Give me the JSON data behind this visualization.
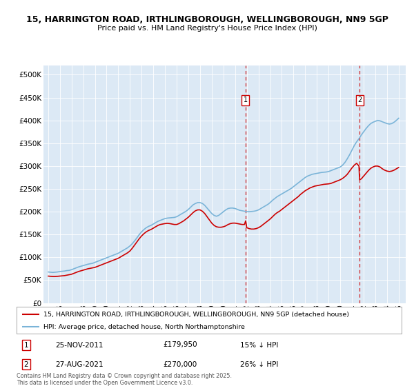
{
  "title_line1": "15, HARRINGTON ROAD, IRTHLINGBOROUGH, WELLINGBOROUGH, NN9 5GP",
  "title_line2": "Price paid vs. HM Land Registry's House Price Index (HPI)",
  "background_color": "#dce9f5",
  "fig_bg_color": "#ffffff",
  "hpi_color": "#7ab4d8",
  "price_color": "#cc0000",
  "annotation1": {
    "label": "1",
    "date": "25-NOV-2011",
    "price": "£179,950",
    "note": "15% ↓ HPI"
  },
  "annotation2": {
    "label": "2",
    "date": "27-AUG-2021",
    "price": "£270,000",
    "note": "26% ↓ HPI"
  },
  "legend_line1": "15, HARRINGTON ROAD, IRTHLINGBOROUGH, WELLINGBOROUGH, NN9 5GP (detached house)",
  "legend_line2": "HPI: Average price, detached house, North Northamptonshire",
  "footnote": "Contains HM Land Registry data © Crown copyright and database right 2025.\nThis data is licensed under the Open Government Licence v3.0.",
  "ylim": [
    0,
    520000
  ],
  "yticks": [
    0,
    50000,
    100000,
    150000,
    200000,
    250000,
    300000,
    350000,
    400000,
    450000,
    500000
  ],
  "ytick_labels": [
    "£0",
    "£50K",
    "£100K",
    "£150K",
    "£200K",
    "£250K",
    "£300K",
    "£350K",
    "£400K",
    "£450K",
    "£500K"
  ],
  "marker1_x": 2011.9,
  "marker2_x": 2021.65,
  "hpi_data": [
    [
      1995.0,
      68000
    ],
    [
      1995.2,
      67500
    ],
    [
      1995.4,
      67000
    ],
    [
      1995.6,
      67500
    ],
    [
      1995.8,
      68000
    ],
    [
      1996.0,
      69000
    ],
    [
      1996.2,
      69500
    ],
    [
      1996.4,
      70000
    ],
    [
      1996.6,
      71000
    ],
    [
      1996.8,
      71500
    ],
    [
      1997.0,
      73000
    ],
    [
      1997.2,
      75000
    ],
    [
      1997.4,
      77000
    ],
    [
      1997.6,
      79000
    ],
    [
      1997.8,
      80500
    ],
    [
      1998.0,
      82000
    ],
    [
      1998.2,
      83500
    ],
    [
      1998.4,
      85000
    ],
    [
      1998.6,
      86000
    ],
    [
      1998.8,
      87000
    ],
    [
      1999.0,
      89000
    ],
    [
      1999.2,
      91000
    ],
    [
      1999.4,
      93000
    ],
    [
      1999.6,
      95000
    ],
    [
      1999.8,
      97000
    ],
    [
      2000.0,
      99000
    ],
    [
      2000.2,
      101000
    ],
    [
      2000.4,
      103000
    ],
    [
      2000.6,
      105000
    ],
    [
      2000.8,
      107000
    ],
    [
      2001.0,
      109000
    ],
    [
      2001.2,
      112000
    ],
    [
      2001.4,
      115000
    ],
    [
      2001.6,
      118000
    ],
    [
      2001.8,
      121000
    ],
    [
      2002.0,
      125000
    ],
    [
      2002.2,
      130000
    ],
    [
      2002.4,
      136000
    ],
    [
      2002.6,
      143000
    ],
    [
      2002.8,
      150000
    ],
    [
      2003.0,
      156000
    ],
    [
      2003.2,
      161000
    ],
    [
      2003.4,
      165000
    ],
    [
      2003.6,
      168000
    ],
    [
      2003.8,
      170000
    ],
    [
      2004.0,
      173000
    ],
    [
      2004.2,
      176000
    ],
    [
      2004.4,
      179000
    ],
    [
      2004.6,
      181000
    ],
    [
      2004.8,
      183000
    ],
    [
      2005.0,
      185000
    ],
    [
      2005.2,
      186000
    ],
    [
      2005.4,
      186500
    ],
    [
      2005.6,
      187000
    ],
    [
      2005.8,
      187500
    ],
    [
      2006.0,
      189000
    ],
    [
      2006.2,
      192000
    ],
    [
      2006.4,
      195000
    ],
    [
      2006.6,
      198000
    ],
    [
      2006.8,
      201000
    ],
    [
      2007.0,
      205000
    ],
    [
      2007.2,
      210000
    ],
    [
      2007.4,
      215000
    ],
    [
      2007.6,
      218000
    ],
    [
      2007.8,
      220000
    ],
    [
      2008.0,
      220000
    ],
    [
      2008.2,
      218000
    ],
    [
      2008.4,
      214000
    ],
    [
      2008.6,
      208000
    ],
    [
      2008.8,
      202000
    ],
    [
      2009.0,
      196000
    ],
    [
      2009.2,
      192000
    ],
    [
      2009.4,
      190000
    ],
    [
      2009.6,
      192000
    ],
    [
      2009.8,
      196000
    ],
    [
      2010.0,
      200000
    ],
    [
      2010.2,
      204000
    ],
    [
      2010.4,
      207000
    ],
    [
      2010.6,
      208000
    ],
    [
      2010.8,
      208000
    ],
    [
      2011.0,
      207000
    ],
    [
      2011.2,
      205000
    ],
    [
      2011.4,
      203000
    ],
    [
      2011.6,
      202000
    ],
    [
      2011.8,
      201000
    ],
    [
      2012.0,
      200000
    ],
    [
      2012.2,
      200000
    ],
    [
      2012.4,
      200500
    ],
    [
      2012.6,
      201000
    ],
    [
      2012.8,
      202000
    ],
    [
      2013.0,
      204000
    ],
    [
      2013.2,
      207000
    ],
    [
      2013.4,
      210000
    ],
    [
      2013.6,
      213000
    ],
    [
      2013.8,
      216000
    ],
    [
      2014.0,
      220000
    ],
    [
      2014.2,
      225000
    ],
    [
      2014.4,
      229000
    ],
    [
      2014.6,
      233000
    ],
    [
      2014.8,
      236000
    ],
    [
      2015.0,
      239000
    ],
    [
      2015.2,
      242000
    ],
    [
      2015.4,
      245000
    ],
    [
      2015.6,
      248000
    ],
    [
      2015.8,
      251000
    ],
    [
      2016.0,
      255000
    ],
    [
      2016.2,
      259000
    ],
    [
      2016.4,
      263000
    ],
    [
      2016.6,
      267000
    ],
    [
      2016.8,
      271000
    ],
    [
      2017.0,
      275000
    ],
    [
      2017.2,
      278000
    ],
    [
      2017.4,
      280000
    ],
    [
      2017.6,
      282000
    ],
    [
      2017.8,
      283000
    ],
    [
      2018.0,
      284000
    ],
    [
      2018.2,
      285000
    ],
    [
      2018.4,
      286000
    ],
    [
      2018.6,
      286500
    ],
    [
      2018.8,
      287000
    ],
    [
      2019.0,
      288000
    ],
    [
      2019.2,
      290000
    ],
    [
      2019.4,
      292000
    ],
    [
      2019.6,
      294000
    ],
    [
      2019.8,
      296000
    ],
    [
      2020.0,
      298000
    ],
    [
      2020.2,
      302000
    ],
    [
      2020.4,
      308000
    ],
    [
      2020.6,
      316000
    ],
    [
      2020.8,
      325000
    ],
    [
      2021.0,
      335000
    ],
    [
      2021.2,
      345000
    ],
    [
      2021.4,
      353000
    ],
    [
      2021.6,
      360000
    ],
    [
      2021.8,
      368000
    ],
    [
      2022.0,
      375000
    ],
    [
      2022.2,
      382000
    ],
    [
      2022.4,
      388000
    ],
    [
      2022.6,
      393000
    ],
    [
      2022.8,
      396000
    ],
    [
      2023.0,
      398000
    ],
    [
      2023.2,
      400000
    ],
    [
      2023.4,
      399000
    ],
    [
      2023.6,
      397000
    ],
    [
      2023.8,
      395000
    ],
    [
      2024.0,
      393000
    ],
    [
      2024.2,
      392000
    ],
    [
      2024.4,
      393000
    ],
    [
      2024.6,
      396000
    ],
    [
      2024.8,
      400000
    ],
    [
      2025.0,
      405000
    ]
  ],
  "price_data": [
    [
      1995.0,
      59000
    ],
    [
      1995.2,
      58500
    ],
    [
      1995.4,
      58000
    ],
    [
      1995.6,
      58000
    ],
    [
      1995.8,
      58500
    ],
    [
      1996.0,
      59000
    ],
    [
      1996.2,
      59500
    ],
    [
      1996.4,
      60000
    ],
    [
      1996.6,
      61000
    ],
    [
      1996.8,
      62000
    ],
    [
      1997.0,
      63000
    ],
    [
      1997.2,
      65000
    ],
    [
      1997.4,
      67000
    ],
    [
      1997.6,
      69000
    ],
    [
      1997.8,
      70500
    ],
    [
      1998.0,
      72000
    ],
    [
      1998.2,
      73500
    ],
    [
      1998.4,
      75000
    ],
    [
      1998.6,
      76000
    ],
    [
      1998.8,
      77000
    ],
    [
      1999.0,
      78000
    ],
    [
      1999.2,
      80000
    ],
    [
      1999.4,
      82000
    ],
    [
      1999.6,
      84000
    ],
    [
      1999.8,
      86000
    ],
    [
      2000.0,
      88000
    ],
    [
      2000.2,
      90000
    ],
    [
      2000.4,
      92000
    ],
    [
      2000.6,
      94000
    ],
    [
      2000.8,
      96000
    ],
    [
      2001.0,
      98000
    ],
    [
      2001.2,
      101000
    ],
    [
      2001.4,
      104000
    ],
    [
      2001.6,
      107000
    ],
    [
      2001.8,
      110000
    ],
    [
      2002.0,
      114000
    ],
    [
      2002.2,
      120000
    ],
    [
      2002.4,
      127000
    ],
    [
      2002.6,
      134000
    ],
    [
      2002.8,
      141000
    ],
    [
      2003.0,
      147000
    ],
    [
      2003.2,
      152000
    ],
    [
      2003.4,
      156000
    ],
    [
      2003.6,
      159000
    ],
    [
      2003.8,
      161000
    ],
    [
      2004.0,
      164000
    ],
    [
      2004.2,
      167000
    ],
    [
      2004.4,
      170000
    ],
    [
      2004.6,
      172000
    ],
    [
      2004.8,
      173000
    ],
    [
      2005.0,
      174000
    ],
    [
      2005.2,
      174500
    ],
    [
      2005.4,
      174000
    ],
    [
      2005.6,
      173000
    ],
    [
      2005.8,
      172000
    ],
    [
      2006.0,
      172000
    ],
    [
      2006.2,
      174000
    ],
    [
      2006.4,
      177000
    ],
    [
      2006.6,
      180000
    ],
    [
      2006.8,
      184000
    ],
    [
      2007.0,
      188000
    ],
    [
      2007.2,
      193000
    ],
    [
      2007.4,
      198000
    ],
    [
      2007.6,
      202000
    ],
    [
      2007.8,
      204000
    ],
    [
      2008.0,
      204000
    ],
    [
      2008.2,
      201000
    ],
    [
      2008.4,
      196000
    ],
    [
      2008.6,
      189000
    ],
    [
      2008.8,
      182000
    ],
    [
      2009.0,
      175000
    ],
    [
      2009.2,
      170000
    ],
    [
      2009.4,
      167000
    ],
    [
      2009.6,
      166000
    ],
    [
      2009.8,
      166000
    ],
    [
      2010.0,
      167000
    ],
    [
      2010.2,
      169000
    ],
    [
      2010.4,
      172000
    ],
    [
      2010.6,
      174000
    ],
    [
      2010.8,
      175000
    ],
    [
      2011.0,
      175000
    ],
    [
      2011.2,
      174000
    ],
    [
      2011.4,
      173000
    ],
    [
      2011.6,
      172000
    ],
    [
      2011.8,
      172000
    ],
    [
      2011.9,
      179950
    ],
    [
      2012.0,
      165000
    ],
    [
      2012.2,
      163000
    ],
    [
      2012.4,
      162000
    ],
    [
      2012.6,
      162000
    ],
    [
      2012.8,
      163000
    ],
    [
      2013.0,
      165000
    ],
    [
      2013.2,
      168000
    ],
    [
      2013.4,
      172000
    ],
    [
      2013.6,
      176000
    ],
    [
      2013.8,
      180000
    ],
    [
      2014.0,
      184000
    ],
    [
      2014.2,
      189000
    ],
    [
      2014.4,
      194000
    ],
    [
      2014.6,
      198000
    ],
    [
      2014.8,
      201000
    ],
    [
      2015.0,
      205000
    ],
    [
      2015.2,
      209000
    ],
    [
      2015.4,
      213000
    ],
    [
      2015.6,
      217000
    ],
    [
      2015.8,
      221000
    ],
    [
      2016.0,
      225000
    ],
    [
      2016.2,
      229000
    ],
    [
      2016.4,
      233000
    ],
    [
      2016.6,
      238000
    ],
    [
      2016.8,
      242000
    ],
    [
      2017.0,
      246000
    ],
    [
      2017.2,
      249000
    ],
    [
      2017.4,
      252000
    ],
    [
      2017.6,
      254000
    ],
    [
      2017.8,
      256000
    ],
    [
      2018.0,
      257000
    ],
    [
      2018.2,
      258000
    ],
    [
      2018.4,
      259000
    ],
    [
      2018.6,
      260000
    ],
    [
      2018.8,
      260500
    ],
    [
      2019.0,
      261000
    ],
    [
      2019.2,
      262000
    ],
    [
      2019.4,
      264000
    ],
    [
      2019.6,
      266000
    ],
    [
      2019.8,
      268000
    ],
    [
      2020.0,
      270000
    ],
    [
      2020.2,
      273000
    ],
    [
      2020.4,
      277000
    ],
    [
      2020.6,
      282000
    ],
    [
      2020.8,
      289000
    ],
    [
      2021.0,
      296000
    ],
    [
      2021.2,
      302000
    ],
    [
      2021.4,
      306000
    ],
    [
      2021.6,
      300000
    ],
    [
      2021.65,
      270000
    ],
    [
      2021.8,
      272000
    ],
    [
      2022.0,
      278000
    ],
    [
      2022.2,
      284000
    ],
    [
      2022.4,
      290000
    ],
    [
      2022.6,
      295000
    ],
    [
      2022.8,
      298000
    ],
    [
      2023.0,
      300000
    ],
    [
      2023.2,
      300000
    ],
    [
      2023.4,
      298000
    ],
    [
      2023.6,
      294000
    ],
    [
      2023.8,
      291000
    ],
    [
      2024.0,
      289000
    ],
    [
      2024.2,
      288000
    ],
    [
      2024.4,
      289000
    ],
    [
      2024.6,
      291000
    ],
    [
      2024.8,
      294000
    ],
    [
      2025.0,
      297000
    ]
  ]
}
